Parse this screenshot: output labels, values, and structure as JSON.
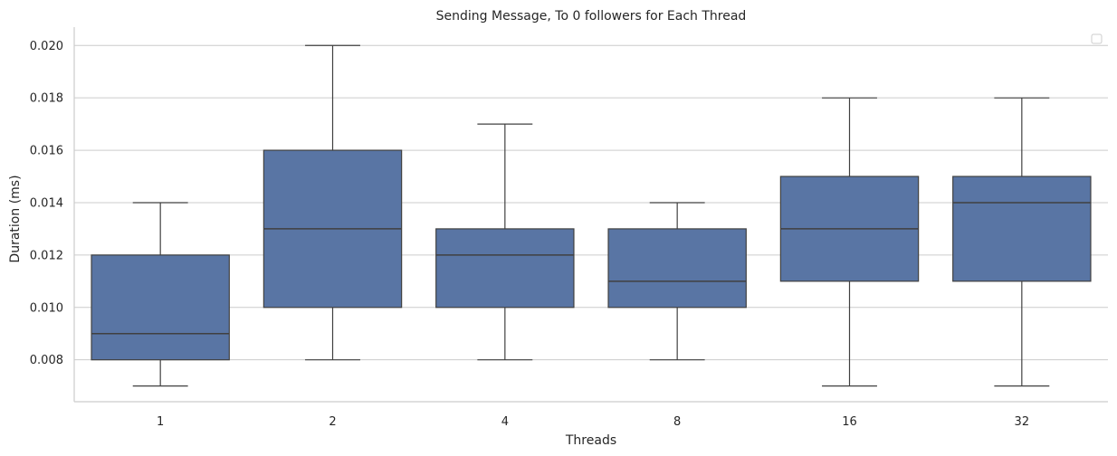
{
  "chart_data": {
    "type": "box",
    "title": "Sending Message, To 0 followers for Each Thread",
    "xlabel": "Threads",
    "ylabel": "Duration (ms)",
    "ylim": [
      0.0064,
      0.0207
    ],
    "yticks": [
      "0.008",
      "0.010",
      "0.012",
      "0.014",
      "0.016",
      "0.018",
      "0.020"
    ],
    "grid": "horizontal",
    "legend": "top-right (empty)",
    "color": "#5975a4",
    "categories": [
      "1",
      "2",
      "4",
      "8",
      "16",
      "32"
    ],
    "boxes": [
      {
        "category": "1",
        "whisker_low": 0.007,
        "q1": 0.008,
        "median": 0.009,
        "q3": 0.012,
        "whisker_high": 0.014
      },
      {
        "category": "2",
        "whisker_low": 0.008,
        "q1": 0.01,
        "median": 0.013,
        "q3": 0.016,
        "whisker_high": 0.02
      },
      {
        "category": "4",
        "whisker_low": 0.008,
        "q1": 0.01,
        "median": 0.012,
        "q3": 0.013,
        "whisker_high": 0.017
      },
      {
        "category": "8",
        "whisker_low": 0.008,
        "q1": 0.01,
        "median": 0.011,
        "q3": 0.013,
        "whisker_high": 0.014
      },
      {
        "category": "16",
        "whisker_low": 0.007,
        "q1": 0.011,
        "median": 0.013,
        "q3": 0.015,
        "whisker_high": 0.018
      },
      {
        "category": "32",
        "whisker_low": 0.007,
        "q1": 0.011,
        "median": 0.014,
        "q3": 0.015,
        "whisker_high": 0.018
      }
    ]
  }
}
